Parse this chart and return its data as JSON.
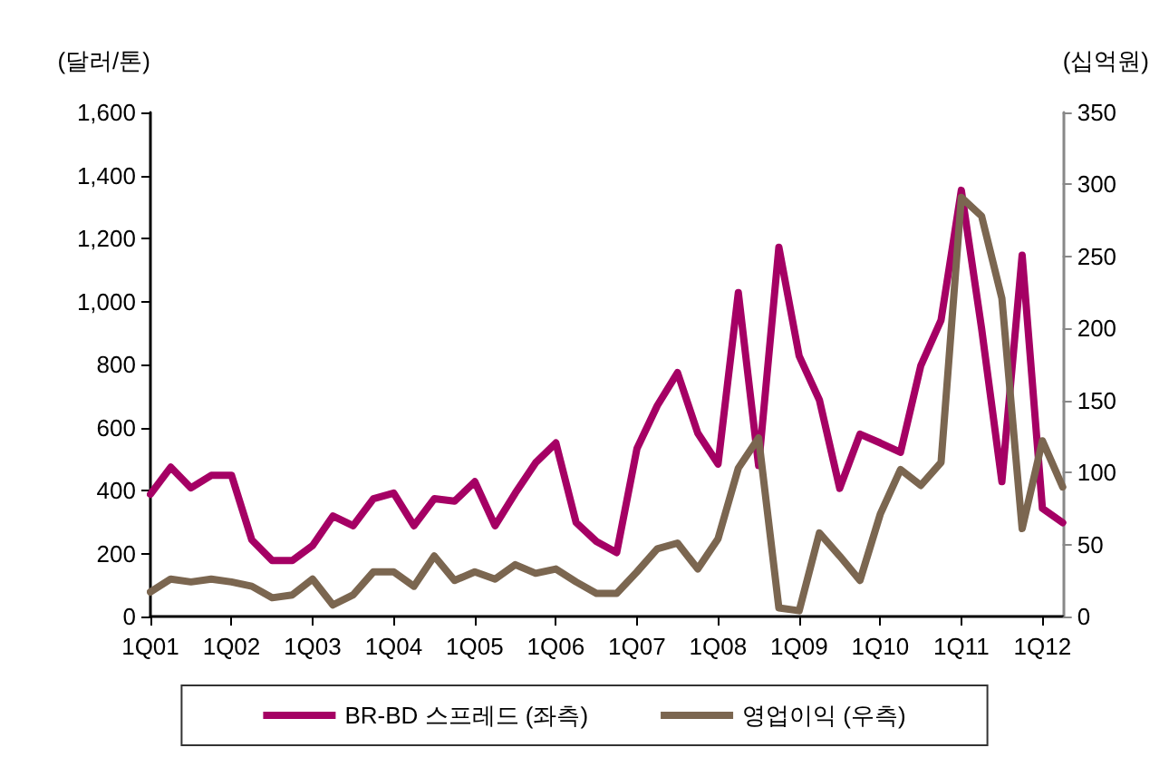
{
  "chart_data": {
    "type": "line",
    "categories": [
      "1Q01",
      null,
      null,
      null,
      "1Q02",
      null,
      null,
      null,
      "1Q03",
      null,
      null,
      null,
      "1Q04",
      null,
      null,
      null,
      "1Q05",
      null,
      null,
      null,
      "1Q06",
      null,
      null,
      null,
      "1Q07",
      null,
      null,
      null,
      "1Q08",
      null,
      null,
      null,
      "1Q09",
      null,
      null,
      null,
      "1Q10",
      null,
      null,
      null,
      "1Q11",
      null,
      null,
      null,
      "1Q12",
      null
    ],
    "ylabel": "(달러/톤)",
    "y2label": "(십억원)",
    "ylim": [
      0,
      1600
    ],
    "yticks": [
      {
        "value": 0,
        "label": "0"
      },
      {
        "value": 200,
        "label": "200"
      },
      {
        "value": 400,
        "label": "400"
      },
      {
        "value": 600,
        "label": "600"
      },
      {
        "value": 800,
        "label": "800"
      },
      {
        "value": 1000,
        "label": "1,000"
      },
      {
        "value": 1200,
        "label": "1,200"
      },
      {
        "value": 1400,
        "label": "1,400"
      },
      {
        "value": 1600,
        "label": "1,600"
      }
    ],
    "y2lim": [
      0,
      350
    ],
    "y2ticks": [
      0,
      50,
      100,
      150,
      200,
      250,
      300,
      350
    ],
    "grid": false,
    "legend": "bottom",
    "marker": "none",
    "line_style": "solid",
    "series": [
      {
        "name": "BR-BD 스프레드 (좌측)",
        "color": "#a50064",
        "values": [
          388,
          474,
          408,
          448,
          448,
          243,
          178,
          178,
          225,
          319,
          288,
          374,
          392,
          288,
          374,
          366,
          428,
          288,
          392,
          488,
          551,
          298,
          238,
          203,
          533,
          669,
          774,
          582,
          484,
          1028,
          479,
          1172,
          827,
          687,
          407,
          579,
          551,
          521,
          796,
          941,
          1353,
          914,
          428,
          1147,
          343,
          298
        ]
      },
      {
        "name": "영업이익 (우측)",
        "color": "#7b6650",
        "axis": "y2",
        "values": [
          17,
          26,
          24,
          26,
          24,
          21,
          13,
          15,
          26,
          8,
          15,
          31,
          31,
          21,
          42,
          25,
          31,
          26,
          36,
          30,
          33,
          24,
          16,
          16,
          31,
          47,
          51,
          33,
          54,
          103,
          124,
          6,
          4,
          58,
          42,
          25,
          71,
          102,
          91,
          107,
          291,
          278,
          221,
          61,
          122,
          90
        ]
      }
    ]
  }
}
